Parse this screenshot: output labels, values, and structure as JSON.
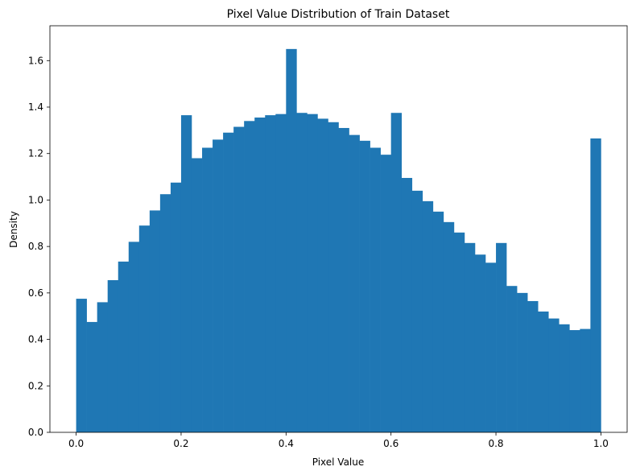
{
  "chart_data": {
    "type": "bar",
    "title": "Pixel Value Distribution of Train Dataset",
    "xlabel": "Pixel Value",
    "ylabel": "Density",
    "xlim": [
      -0.05,
      1.05
    ],
    "ylim": [
      0,
      1.75
    ],
    "xticks": [
      0.0,
      0.2,
      0.4,
      0.6,
      0.8,
      1.0
    ],
    "xtick_labels": [
      "0.0",
      "0.2",
      "0.4",
      "0.6",
      "0.8",
      "1.0"
    ],
    "yticks": [
      0.0,
      0.2,
      0.4,
      0.6,
      0.8,
      1.0,
      1.2,
      1.4,
      1.6
    ],
    "ytick_labels": [
      "0.0",
      "0.2",
      "0.4",
      "0.6",
      "0.8",
      "1.0",
      "1.2",
      "1.4",
      "1.6"
    ],
    "grid": false,
    "color": "#1f77b4",
    "bin_edges": [
      0.0,
      0.02,
      0.04,
      0.06,
      0.08,
      0.1,
      0.12,
      0.14,
      0.16,
      0.18,
      0.2,
      0.22,
      0.24,
      0.26,
      0.28,
      0.3,
      0.32,
      0.34,
      0.36,
      0.38,
      0.4,
      0.42,
      0.44,
      0.46,
      0.48,
      0.5,
      0.52,
      0.54,
      0.56,
      0.58,
      0.6,
      0.62,
      0.64,
      0.66,
      0.68,
      0.7,
      0.72,
      0.74,
      0.76,
      0.78,
      0.8,
      0.82,
      0.84,
      0.86,
      0.88,
      0.9,
      0.92,
      0.94,
      0.96,
      0.98,
      1.0
    ],
    "values": [
      0.575,
      0.475,
      0.56,
      0.655,
      0.735,
      0.82,
      0.89,
      0.955,
      1.025,
      1.075,
      1.365,
      1.18,
      1.225,
      1.26,
      1.29,
      1.315,
      1.34,
      1.355,
      1.365,
      1.37,
      1.65,
      1.375,
      1.37,
      1.35,
      1.335,
      1.31,
      1.28,
      1.255,
      1.225,
      1.195,
      1.375,
      1.095,
      1.04,
      0.995,
      0.95,
      0.905,
      0.86,
      0.815,
      0.765,
      0.73,
      0.815,
      0.63,
      0.6,
      0.565,
      0.52,
      0.49,
      0.465,
      0.44,
      0.445,
      1.265
    ]
  }
}
